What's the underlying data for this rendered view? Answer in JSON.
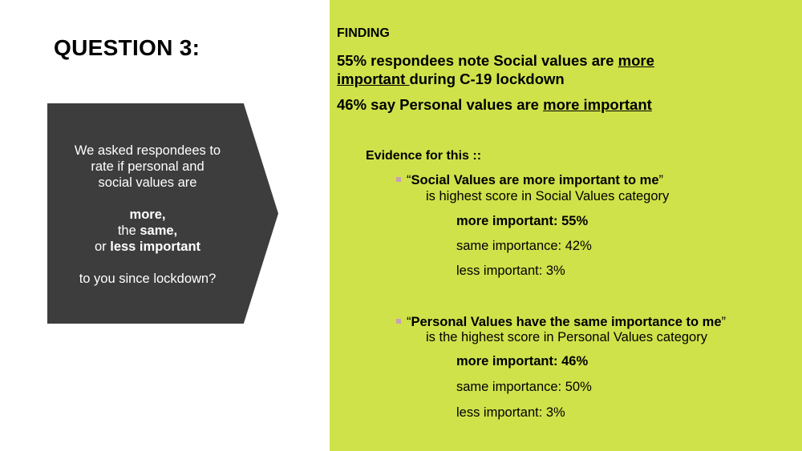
{
  "title": "QUESTION 3:",
  "question": {
    "line1": "We asked respondees to",
    "line2": "rate if personal and",
    "line3": "social values are",
    "opt_more": "more,",
    "opt_same_prefix": "the ",
    "opt_same": "same,",
    "opt_less_prefix": "or ",
    "opt_less": "less important",
    "line_end": "to you since lockdown?"
  },
  "finding": {
    "label": "FINDING",
    "s1_part1": "55% respondees note Social values are ",
    "s1_more": "more",
    "s1_important": "important ",
    "s1_part2": "during C-19 lockdown",
    "s2_part1": "46% say Personal values are ",
    "s2_u": "more important"
  },
  "evidence_label": "Evidence for this ::",
  "social": {
    "quote_open": "“",
    "quote": "Social Values are more important to me",
    "quote_close": "”",
    "sub": "is highest score in Social Values category",
    "more": "more important: 55%",
    "same": "same importance: 42%",
    "less": "less important:  3%"
  },
  "personal": {
    "quote_open": "“",
    "quote": "Personal Values have the same importance to me",
    "quote_close": "”",
    "sub": "is the highest score in Personal Values category",
    "more": "more important: 46%",
    "same": "same importance: 50%",
    "less": "less important: 3%"
  },
  "colors": {
    "panel": "#cfe24a",
    "arrow": "#3d3d3d",
    "bullet": "#c7a1b6"
  }
}
